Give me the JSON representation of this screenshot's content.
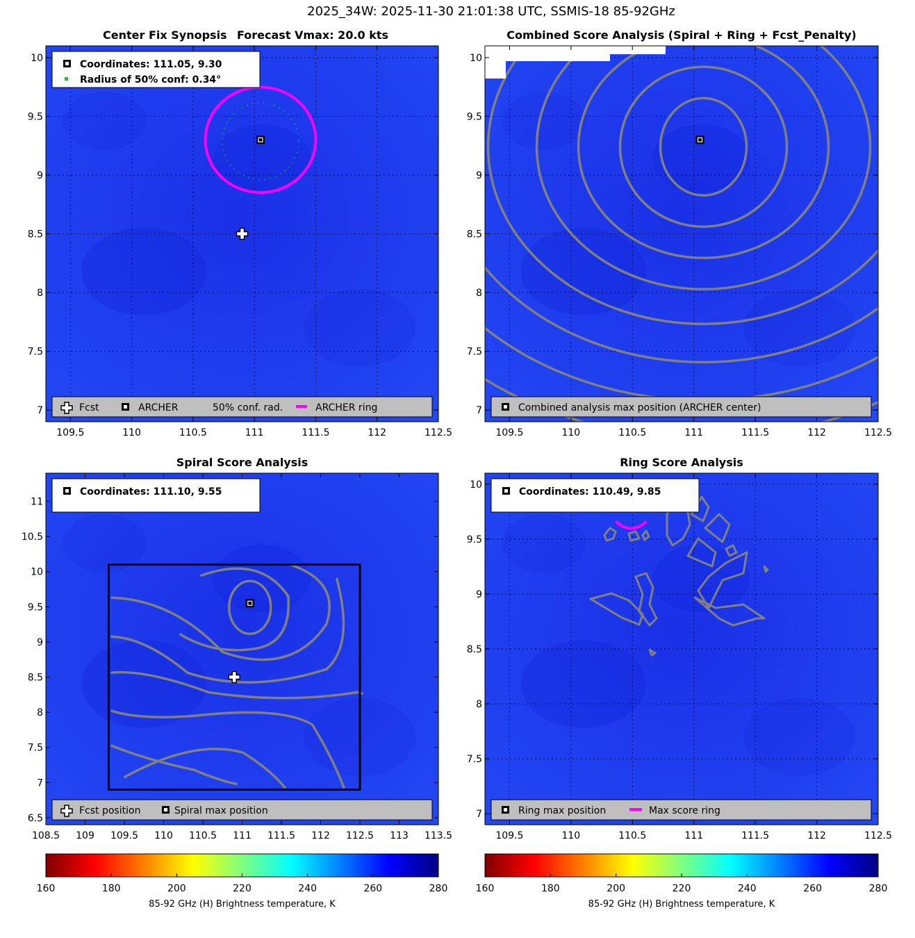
{
  "figure": {
    "suptitle": "2025_34W: 2025-11-30 21:01:38 UTC, SSMIS-18 85-92GHz",
    "colors": {
      "background": "#1f3cf0",
      "contour": "#808080",
      "ring": "#ff00ff",
      "conf": "#00dd00"
    }
  },
  "chart_data": [
    {
      "type": "heatmap",
      "panel": "center-fix-synopsis",
      "title": "Center Fix Synopsis",
      "title2": "Forecast Vmax: 20.0 kts",
      "xlim": [
        109.3,
        112.5
      ],
      "ylim": [
        6.9,
        10.1
      ],
      "xticks": [
        109.5,
        110,
        110.5,
        111,
        111.5,
        112,
        112.5
      ],
      "yticks": [
        7,
        7.5,
        8,
        8.5,
        9,
        9.5,
        10
      ],
      "grid": true,
      "info_lines": [
        "Coordinates: 111.05, 9.30",
        "Radius of 50% conf: 0.34°"
      ],
      "legend": [
        "Fcst",
        "ARCHER",
        "50% conf. rad.",
        "ARCHER ring"
      ],
      "legend_location": "bottom",
      "archer_center": [
        111.05,
        9.3
      ],
      "fcst_position": [
        110.9,
        8.5
      ],
      "conf_radius_deg": 0.34,
      "ring_radius_deg": 0.45
    },
    {
      "type": "heatmap",
      "panel": "combined-score",
      "title": "Combined Score Analysis (Spiral + Ring + Fcst_Penalty)",
      "xlim": [
        109.3,
        112.5
      ],
      "ylim": [
        6.9,
        10.1
      ],
      "xticks": [
        109.5,
        110,
        110.5,
        111,
        111.5,
        112,
        112.5
      ],
      "yticks": [
        7,
        7.5,
        8,
        8.5,
        9,
        9.5,
        10
      ],
      "grid": true,
      "legend": [
        "Combined analysis max position (ARCHER center)"
      ],
      "legend_location": "bottom",
      "max_position": [
        111.05,
        9.3
      ]
    },
    {
      "type": "heatmap",
      "panel": "spiral-score",
      "title": "Spiral Score Analysis",
      "xlim": [
        108.5,
        113.5
      ],
      "ylim": [
        6.4,
        11.4
      ],
      "xticks": [
        108.5,
        109,
        109.5,
        110,
        110.5,
        111,
        111.5,
        112,
        112.5,
        113,
        113.5
      ],
      "yticks": [
        6.5,
        7,
        7.5,
        8,
        8.5,
        9,
        9.5,
        10,
        10.5,
        11
      ],
      "grid": false,
      "info_lines": [
        "Coordinates: 111.10, 9.55"
      ],
      "legend": [
        "Fcst position",
        "Spiral max position"
      ],
      "legend_location": "bottom",
      "max_position": [
        111.1,
        9.55
      ],
      "fcst_position": [
        110.9,
        8.5
      ]
    },
    {
      "type": "heatmap",
      "panel": "ring-score",
      "title": "Ring Score Analysis",
      "xlim": [
        109.3,
        112.5
      ],
      "ylim": [
        6.9,
        10.1
      ],
      "xticks": [
        109.5,
        110,
        110.5,
        111,
        111.5,
        112,
        112.5
      ],
      "yticks": [
        7,
        7.5,
        8,
        8.5,
        9,
        9.5,
        10
      ],
      "grid": true,
      "info_lines": [
        "Coordinates: 110.49, 9.85"
      ],
      "legend": [
        "Ring max position",
        "Max score ring"
      ],
      "legend_location": "bottom",
      "max_position": [
        110.49,
        9.85
      ]
    }
  ],
  "colorbars": [
    {
      "ticks": [
        160,
        180,
        200,
        220,
        240,
        260,
        280
      ],
      "label": "85-92 GHz (H) Brightness temperature, K"
    },
    {
      "ticks": [
        160,
        180,
        200,
        220,
        240,
        260,
        280
      ],
      "label": "85-92 GHz (H) Brightness temperature, K"
    }
  ],
  "colormap": [
    "#800000",
    "#ff0000",
    "#ff8000",
    "#ffff00",
    "#80ff80",
    "#00ffff",
    "#0080ff",
    "#0000ff",
    "#000080"
  ]
}
